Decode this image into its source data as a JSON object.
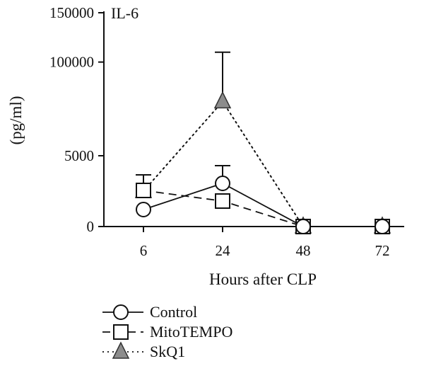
{
  "chart_data": {
    "type": "line",
    "title": "IL-6",
    "xlabel": "Hours after CLP",
    "ylabel": "(pg/ml)",
    "x": [
      6,
      24,
      48,
      72
    ],
    "x_tick_labels": [
      "6",
      "24",
      "48",
      "72"
    ],
    "y_tick_labels": [
      "0",
      "5000",
      "100000",
      "150000"
    ],
    "y_axis_note": "broken axis: lower segment 0-5000, upper segment 5000-150000",
    "legend_position": "bottom-left",
    "grid": false,
    "series": [
      {
        "name": "Control",
        "marker": "circle",
        "line_style": "solid",
        "marker_fill": "#ffffff",
        "values": [
          1200,
          3050,
          0,
          0
        ],
        "error_upper": [
          null,
          4300,
          null,
          null
        ]
      },
      {
        "name": "MitoTEMPO",
        "marker": "square",
        "line_style": "dashed",
        "marker_fill": "#ffffff",
        "values": [
          2550,
          1800,
          0,
          0
        ],
        "error_upper": [
          3650,
          null,
          null,
          null
        ]
      },
      {
        "name": "SkQ1",
        "marker": "triangle",
        "line_style": "dotted",
        "marker_fill": "#8c8c8c",
        "values": [
          2500,
          60000,
          0,
          0
        ],
        "error_upper": [
          null,
          110000,
          null,
          null
        ]
      }
    ]
  }
}
